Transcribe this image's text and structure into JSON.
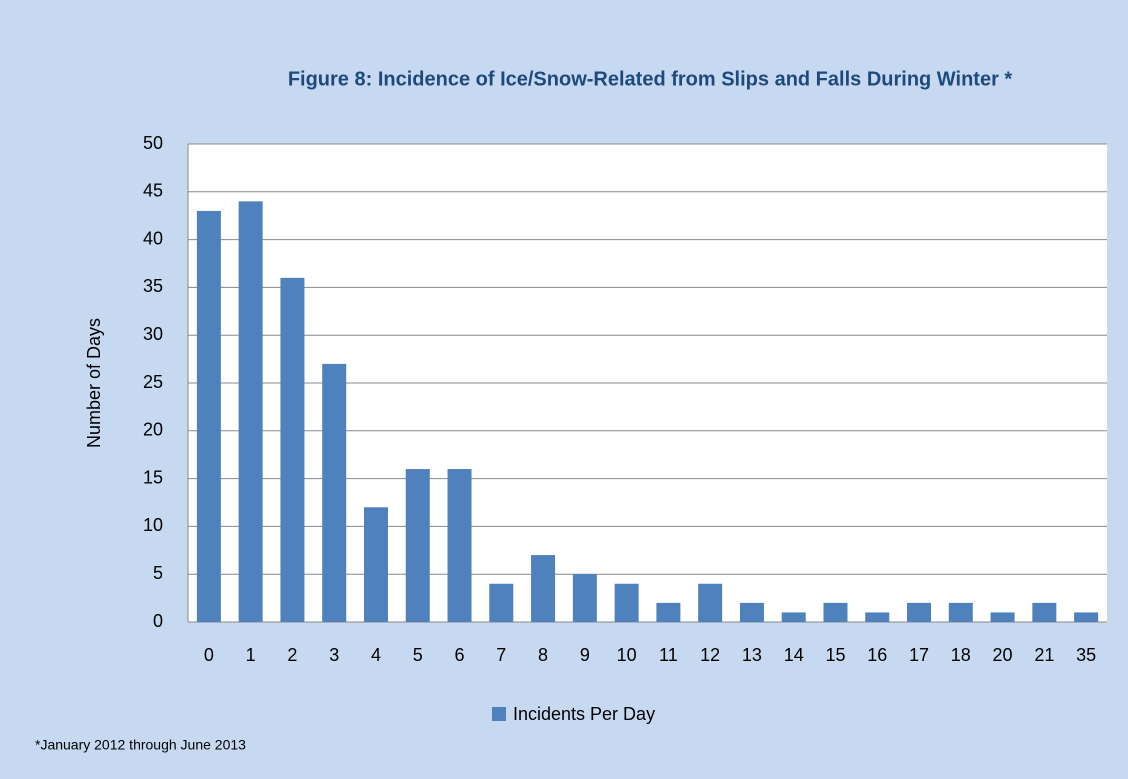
{
  "chart_data": {
    "type": "bar",
    "title": "Figure 8: Incidence of Ice/Snow-Related from Slips and Falls During Winter *",
    "y_label": "Number of Days",
    "annotation": "*January 2012 through June 2013",
    "categories": [
      "0",
      "1",
      "2",
      "3",
      "4",
      "5",
      "6",
      "7",
      "8",
      "9",
      "10",
      "11",
      "12",
      "13",
      "14",
      "15",
      "16",
      "17",
      "18",
      "20",
      "21",
      "35"
    ],
    "series": [
      {
        "name": "Incidents Per Day",
        "color": "#4f81bd",
        "values": [
          43,
          44,
          36,
          27,
          12,
          16,
          16,
          4,
          7,
          5,
          4,
          2,
          4,
          2,
          1,
          2,
          1,
          2,
          2,
          1,
          2,
          1
        ]
      }
    ],
    "ylim": [
      0,
      50
    ],
    "yticks": [
      0,
      5,
      10,
      15,
      20,
      25,
      30,
      35,
      40,
      45,
      50
    ],
    "grid": true,
    "legend": "bottom"
  }
}
